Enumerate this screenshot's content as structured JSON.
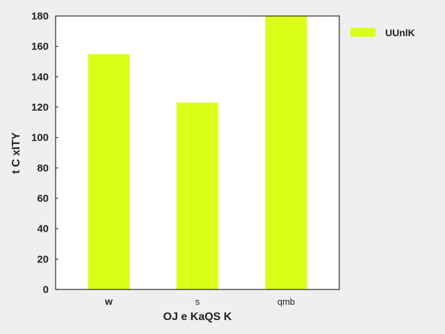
{
  "chart_data": {
    "type": "bar",
    "categories": [
      "w",
      "s",
      "qmb"
    ],
    "series": [
      {
        "name": "UUnlK",
        "values": [
          155,
          123,
          180
        ]
      }
    ],
    "xlabel": "OJ e KaQS K",
    "ylabel": "t C xITY",
    "ylim": [
      0,
      180
    ],
    "yticks": [
      0,
      20,
      40,
      60,
      80,
      100,
      120,
      140,
      160,
      180
    ],
    "grid": false,
    "legend_position": "outside-top-right",
    "colors": {
      "bar": "#dcff1a",
      "plot_background": "#ffffff",
      "page_background": "#efefef"
    }
  }
}
